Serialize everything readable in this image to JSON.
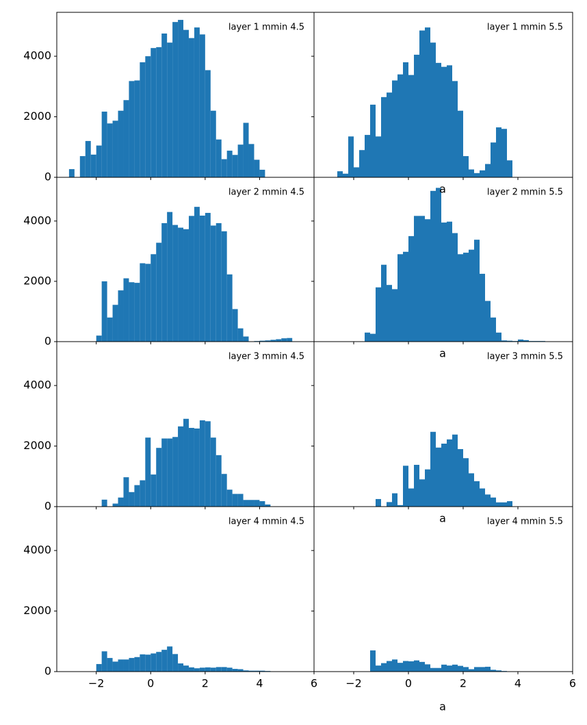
{
  "chart_data": [
    {
      "type": "histogram",
      "title": "layer 1 mmin 4.5",
      "color": "#1f77b4",
      "xlim": [
        -3.45,
        6.0
      ],
      "ylim": [
        0,
        5450
      ],
      "xticks": [
        -2,
        0,
        2,
        4,
        6
      ],
      "yticks": [
        0,
        2000,
        4000
      ],
      "show_xtick_labels": false,
      "show_ytick_labels": true,
      "bins": [
        -3.0,
        -2.8,
        -2.6,
        -2.4,
        -2.2,
        -2.0,
        -1.8,
        -1.6,
        -1.4,
        -1.2,
        -1.0,
        -0.8,
        -0.6,
        -0.4,
        -0.2,
        0.0,
        0.2,
        0.4,
        0.6,
        0.8,
        1.0,
        1.2,
        1.4,
        1.6,
        1.8,
        2.0,
        2.2,
        2.4,
        2.6,
        2.8,
        3.0,
        3.2,
        3.4,
        3.6,
        3.8,
        4.0,
        4.2
      ],
      "values": [
        270,
        0,
        700,
        1200,
        750,
        1050,
        2170,
        1780,
        1870,
        2200,
        2550,
        3180,
        3200,
        3800,
        4000,
        4270,
        4300,
        4750,
        4450,
        5130,
        5200,
        4870,
        4600,
        4950,
        4720,
        3540,
        2200,
        1250,
        600,
        880,
        740,
        1080,
        1800,
        1100,
        580,
        250
      ]
    },
    {
      "type": "histogram",
      "title": "layer 1 mmin 5.5",
      "xlabel": "a",
      "color": "#1f77b4",
      "xlim": [
        -3.45,
        6.0
      ],
      "ylim": [
        0,
        5450
      ],
      "xticks": [
        -2,
        0,
        2,
        4,
        6
      ],
      "yticks": [
        0,
        2000,
        4000
      ],
      "show_xtick_labels": false,
      "show_ytick_labels": false,
      "bins": [
        -2.6,
        -2.4,
        -2.2,
        -2.0,
        -1.8,
        -1.6,
        -1.4,
        -1.2,
        -1.0,
        -0.8,
        -0.6,
        -0.4,
        -0.2,
        0.0,
        0.2,
        0.4,
        0.6,
        0.8,
        1.0,
        1.2,
        1.4,
        1.6,
        1.8,
        2.0,
        2.2,
        2.4,
        2.6,
        2.8,
        3.0,
        3.2,
        3.4,
        3.6,
        3.8
      ],
      "values": [
        200,
        120,
        1350,
        330,
        900,
        1400,
        2400,
        1350,
        2650,
        2800,
        3200,
        3400,
        3800,
        3380,
        4050,
        4850,
        4950,
        4450,
        3780,
        3650,
        3700,
        3180,
        2200,
        700,
        260,
        140,
        230,
        440,
        1150,
        1650,
        1600,
        560
      ]
    },
    {
      "type": "histogram",
      "title": "layer 2 mmin 4.5",
      "color": "#1f77b4",
      "xlim": [
        -3.45,
        6.0
      ],
      "ylim": [
        0,
        5450
      ],
      "xticks": [
        -2,
        0,
        2,
        4,
        6
      ],
      "yticks": [
        0,
        2000,
        4000
      ],
      "show_xtick_labels": false,
      "show_ytick_labels": true,
      "bins": [
        -2.0,
        -1.8,
        -1.6,
        -1.4,
        -1.2,
        -1.0,
        -0.8,
        -0.6,
        -0.4,
        -0.2,
        0.0,
        0.2,
        0.4,
        0.6,
        0.8,
        1.0,
        1.2,
        1.4,
        1.6,
        1.8,
        2.0,
        2.2,
        2.4,
        2.6,
        2.8,
        3.0,
        3.2,
        3.4,
        3.6,
        3.8,
        4.0,
        4.2,
        4.4,
        4.6,
        4.8,
        5.0,
        5.2
      ],
      "values": [
        200,
        2000,
        800,
        1220,
        1700,
        2100,
        1970,
        1950,
        2600,
        2580,
        2900,
        3280,
        3930,
        4300,
        3870,
        3780,
        3730,
        4170,
        4470,
        4180,
        4270,
        3850,
        3930,
        3660,
        2230,
        1080,
        440,
        170,
        10,
        20,
        30,
        40,
        60,
        80,
        110,
        120
      ]
    },
    {
      "type": "histogram",
      "title": "layer 2 mmin 5.5",
      "xlabel": "a",
      "color": "#1f77b4",
      "xlim": [
        -3.45,
        6.0
      ],
      "ylim": [
        0,
        5450
      ],
      "xticks": [
        -2,
        0,
        2,
        4,
        6
      ],
      "yticks": [
        0,
        2000,
        4000
      ],
      "show_xtick_labels": false,
      "show_ytick_labels": false,
      "bins": [
        -1.6,
        -1.4,
        -1.2,
        -1.0,
        -0.8,
        -0.6,
        -0.4,
        -0.2,
        0.0,
        0.2,
        0.4,
        0.6,
        0.8,
        1.0,
        1.2,
        1.4,
        1.6,
        1.8,
        2.0,
        2.2,
        2.4,
        2.6,
        2.8,
        3.0,
        3.2,
        3.4,
        3.6,
        3.8,
        4.0,
        4.2,
        4.4,
        4.6,
        4.8,
        5.0
      ],
      "values": [
        300,
        260,
        1800,
        2550,
        1880,
        1740,
        2900,
        2980,
        3500,
        4170,
        4170,
        4060,
        5000,
        5100,
        3950,
        3980,
        3600,
        2900,
        2950,
        3050,
        3380,
        2250,
        1350,
        800,
        300,
        40,
        30,
        20,
        70,
        50,
        20,
        20,
        20
      ]
    },
    {
      "type": "histogram",
      "title": "layer 3 mmin 4.5",
      "color": "#1f77b4",
      "xlim": [
        -3.45,
        6.0
      ],
      "ylim": [
        0,
        5450
      ],
      "xticks": [
        -2,
        0,
        2,
        4,
        6
      ],
      "yticks": [
        0,
        2000,
        4000
      ],
      "show_xtick_labels": false,
      "show_ytick_labels": true,
      "bins": [
        -1.8,
        -1.6,
        -1.4,
        -1.2,
        -1.0,
        -0.8,
        -0.6,
        -0.4,
        -0.2,
        0.0,
        0.2,
        0.4,
        0.6,
        0.8,
        1.0,
        1.2,
        1.4,
        1.6,
        1.8,
        2.0,
        2.2,
        2.4,
        2.6,
        2.8,
        3.0,
        3.2,
        3.4,
        3.6,
        3.8,
        4.0,
        4.2,
        4.4
      ],
      "values": [
        230,
        0,
        100,
        300,
        970,
        480,
        710,
        870,
        2280,
        1060,
        1940,
        2250,
        2250,
        2300,
        2650,
        2900,
        2600,
        2580,
        2850,
        2820,
        2280,
        1700,
        1080,
        560,
        420,
        420,
        220,
        220,
        220,
        180,
        70
      ]
    },
    {
      "type": "histogram",
      "title": "layer 3 mmin 5.5",
      "xlabel": "a",
      "color": "#1f77b4",
      "xlim": [
        -3.45,
        6.0
      ],
      "ylim": [
        0,
        5450
      ],
      "xticks": [
        -2,
        0,
        2,
        4,
        6
      ],
      "yticks": [
        0,
        2000,
        4000
      ],
      "show_xtick_labels": false,
      "show_ytick_labels": false,
      "bins": [
        -1.2,
        -1.0,
        -0.8,
        -0.6,
        -0.4,
        -0.2,
        0.0,
        0.2,
        0.4,
        0.6,
        0.8,
        1.0,
        1.2,
        1.4,
        1.6,
        1.8,
        2.0,
        2.2,
        2.4,
        2.6,
        2.8,
        3.0,
        3.2,
        3.4,
        3.6,
        3.8
      ],
      "values": [
        250,
        0,
        150,
        440,
        50,
        1350,
        600,
        1380,
        900,
        1230,
        2470,
        1950,
        2080,
        2220,
        2380,
        1900,
        1600,
        1100,
        840,
        600,
        400,
        300,
        140,
        140,
        180
      ]
    },
    {
      "type": "histogram",
      "title": "layer 4 mmin 4.5",
      "color": "#1f77b4",
      "xlim": [
        -3.45,
        6.0
      ],
      "ylim": [
        0,
        5450
      ],
      "xticks": [
        {
          "value": -2,
          "label": "−2"
        },
        0,
        2,
        4,
        6
      ],
      "yticks": [
        0,
        2000,
        4000
      ],
      "show_xtick_labels": true,
      "show_ytick_labels": true,
      "bins": [
        -2.0,
        -1.8,
        -1.6,
        -1.4,
        -1.2,
        -1.0,
        -0.8,
        -0.6,
        -0.4,
        -0.2,
        0.0,
        0.2,
        0.4,
        0.6,
        0.8,
        1.0,
        1.2,
        1.4,
        1.6,
        1.8,
        2.0,
        2.2,
        2.4,
        2.6,
        2.8,
        3.0,
        3.2,
        3.4,
        3.6,
        3.8,
        4.0,
        4.2,
        4.4
      ],
      "values": [
        250,
        670,
        450,
        330,
        400,
        400,
        450,
        480,
        570,
        560,
        600,
        650,
        720,
        830,
        580,
        270,
        200,
        140,
        110,
        130,
        140,
        130,
        150,
        150,
        130,
        90,
        80,
        40,
        30,
        30,
        30,
        20
      ]
    },
    {
      "type": "histogram",
      "title": "layer 4 mmin 5.5",
      "xlabel": "a",
      "color": "#1f77b4",
      "xlim": [
        -3.45,
        6.0
      ],
      "ylim": [
        0,
        5450
      ],
      "xticks": [
        {
          "value": -2,
          "label": "−2"
        },
        0,
        2,
        4,
        6
      ],
      "yticks": [
        0,
        2000,
        4000
      ],
      "show_xtick_labels": true,
      "show_ytick_labels": false,
      "bins": [
        -1.4,
        -1.2,
        -1.0,
        -0.8,
        -0.6,
        -0.4,
        -0.2,
        0.0,
        0.2,
        0.4,
        0.6,
        0.8,
        1.0,
        1.2,
        1.4,
        1.6,
        1.8,
        2.0,
        2.2,
        2.4,
        2.6,
        2.8,
        3.0,
        3.2,
        3.4,
        3.6,
        3.8,
        4.0,
        4.2
      ],
      "values": [
        700,
        200,
        280,
        350,
        400,
        290,
        350,
        340,
        370,
        320,
        240,
        120,
        120,
        230,
        200,
        230,
        190,
        150,
        80,
        150,
        150,
        160,
        60,
        40,
        20,
        10,
        10,
        10
      ]
    }
  ]
}
